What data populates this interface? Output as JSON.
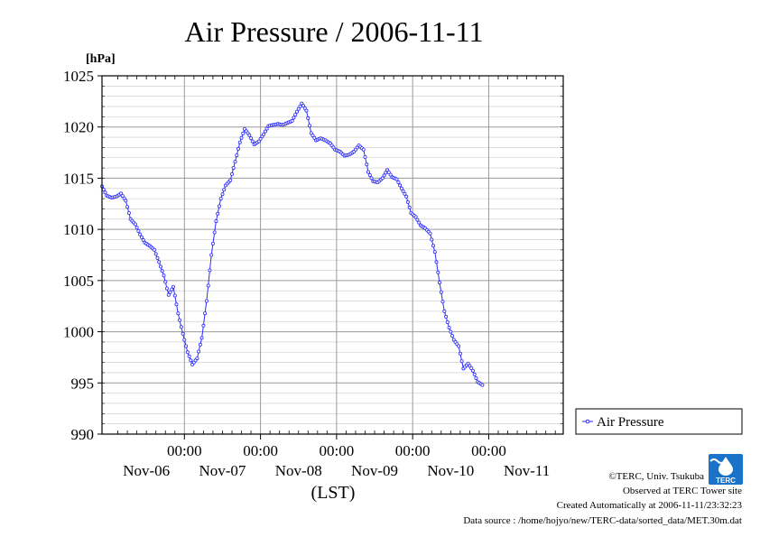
{
  "chart_data": {
    "type": "line",
    "title": "Air Pressure / 2006-11-11",
    "ylabel": "[hPa]",
    "xlabel": "(LST)",
    "ylim": [
      990,
      1025
    ],
    "yticks": [
      990,
      995,
      1000,
      1005,
      1010,
      1015,
      1020,
      1025
    ],
    "xlim": [
      "2006-11-05T22:00",
      "2006-11-11T23:30"
    ],
    "xticks": [
      {
        "time": "2006-11-07T00:00",
        "label": "00:00"
      },
      {
        "time": "2006-11-08T00:00",
        "label": "00:00"
      },
      {
        "time": "2006-11-09T00:00",
        "label": "00:00"
      },
      {
        "time": "2006-11-10T00:00",
        "label": "00:00"
      },
      {
        "time": "2006-11-11T00:00",
        "label": "00:00"
      }
    ],
    "date_labels": [
      {
        "time": "2006-11-06T12:00",
        "label": "Nov-06"
      },
      {
        "time": "2006-11-07T12:00",
        "label": "Nov-07"
      },
      {
        "time": "2006-11-08T12:00",
        "label": "Nov-08"
      },
      {
        "time": "2006-11-09T12:00",
        "label": "Nov-09"
      },
      {
        "time": "2006-11-10T12:00",
        "label": "Nov-10"
      },
      {
        "time": "2006-11-11T12:00",
        "label": "Nov-11"
      }
    ],
    "grid": true,
    "legend": "right",
    "series": [
      {
        "name": "Air Pressure",
        "color": "#2b2bff",
        "marker": "open-circle",
        "points": [
          [
            "2006-11-05T22:00",
            1014.2
          ],
          [
            "2006-11-05T23:30",
            1013.3
          ],
          [
            "2006-11-06T01:00",
            1013.1
          ],
          [
            "2006-11-06T02:30",
            1013.2
          ],
          [
            "2006-11-06T04:00",
            1013.5
          ],
          [
            "2006-11-06T05:30",
            1012.8
          ],
          [
            "2006-11-06T07:00",
            1011.0
          ],
          [
            "2006-11-06T08:30",
            1010.5
          ],
          [
            "2006-11-06T10:00",
            1009.5
          ],
          [
            "2006-11-06T11:30",
            1008.7
          ],
          [
            "2006-11-06T13:00",
            1008.4
          ],
          [
            "2006-11-06T14:30",
            1008.0
          ],
          [
            "2006-11-06T16:00",
            1006.8
          ],
          [
            "2006-11-06T17:30",
            1005.5
          ],
          [
            "2006-11-06T19:00",
            1003.6
          ],
          [
            "2006-11-06T20:30",
            1004.4
          ],
          [
            "2006-11-06T22:00",
            1001.8
          ],
          [
            "2006-11-06T23:30",
            999.8
          ],
          [
            "2006-11-07T01:00",
            998.0
          ],
          [
            "2006-11-07T02:30",
            996.8
          ],
          [
            "2006-11-07T04:00",
            997.4
          ],
          [
            "2006-11-07T05:30",
            999.4
          ],
          [
            "2006-11-07T07:00",
            1003.0
          ],
          [
            "2006-11-07T08:30",
            1007.5
          ],
          [
            "2006-11-07T10:00",
            1010.8
          ],
          [
            "2006-11-07T11:30",
            1013.0
          ],
          [
            "2006-11-07T13:00",
            1014.3
          ],
          [
            "2006-11-07T14:30",
            1014.8
          ],
          [
            "2006-11-07T16:00",
            1016.6
          ],
          [
            "2006-11-07T17:30",
            1018.5
          ],
          [
            "2006-11-07T19:00",
            1019.8
          ],
          [
            "2006-11-07T20:30",
            1019.2
          ],
          [
            "2006-11-07T22:00",
            1018.3
          ],
          [
            "2006-11-07T23:30",
            1018.6
          ],
          [
            "2006-11-08T01:00",
            1019.3
          ],
          [
            "2006-11-08T02:30",
            1020.1
          ],
          [
            "2006-11-08T04:00",
            1020.2
          ],
          [
            "2006-11-08T05:30",
            1020.3
          ],
          [
            "2006-11-08T07:00",
            1020.2
          ],
          [
            "2006-11-08T08:30",
            1020.4
          ],
          [
            "2006-11-08T10:00",
            1020.6
          ],
          [
            "2006-11-08T11:30",
            1021.5
          ],
          [
            "2006-11-08T13:00",
            1022.3
          ],
          [
            "2006-11-08T14:30",
            1021.6
          ],
          [
            "2006-11-08T16:00",
            1019.4
          ],
          [
            "2006-11-08T17:30",
            1018.7
          ],
          [
            "2006-11-08T19:00",
            1018.9
          ],
          [
            "2006-11-08T20:30",
            1018.7
          ],
          [
            "2006-11-08T22:00",
            1018.4
          ],
          [
            "2006-11-08T23:30",
            1017.8
          ],
          [
            "2006-11-09T01:00",
            1017.6
          ],
          [
            "2006-11-09T02:30",
            1017.2
          ],
          [
            "2006-11-09T04:00",
            1017.3
          ],
          [
            "2006-11-09T05:30",
            1017.6
          ],
          [
            "2006-11-09T07:00",
            1018.2
          ],
          [
            "2006-11-09T08:30",
            1017.8
          ],
          [
            "2006-11-09T10:00",
            1015.6
          ],
          [
            "2006-11-09T11:30",
            1014.7
          ],
          [
            "2006-11-09T13:00",
            1014.6
          ],
          [
            "2006-11-09T14:30",
            1015.0
          ],
          [
            "2006-11-09T16:00",
            1015.8
          ],
          [
            "2006-11-09T17:30",
            1015.1
          ],
          [
            "2006-11-09T19:00",
            1014.9
          ],
          [
            "2006-11-09T20:30",
            1014.0
          ],
          [
            "2006-11-09T22:00",
            1013.2
          ],
          [
            "2006-11-09T23:30",
            1011.6
          ],
          [
            "2006-11-10T01:00",
            1011.2
          ],
          [
            "2006-11-10T02:30",
            1010.4
          ],
          [
            "2006-11-10T04:00",
            1010.1
          ],
          [
            "2006-11-10T05:30",
            1009.6
          ],
          [
            "2006-11-10T07:00",
            1007.8
          ],
          [
            "2006-11-10T08:30",
            1004.8
          ],
          [
            "2006-11-10T10:00",
            1002.0
          ],
          [
            "2006-11-10T11:30",
            1000.4
          ],
          [
            "2006-11-10T13:00",
            999.2
          ],
          [
            "2006-11-10T14:30",
            998.6
          ],
          [
            "2006-11-10T16:00",
            996.4
          ],
          [
            "2006-11-10T17:30",
            996.9
          ],
          [
            "2006-11-10T19:00",
            996.2
          ],
          [
            "2006-11-10T20:30",
            995.1
          ],
          [
            "2006-11-10T22:00",
            994.8
          ]
        ]
      }
    ]
  },
  "footer": {
    "credit": "©TERC, Univ. Tsukuba",
    "observed": "Observed at TERC Tower site",
    "created": "Created Automatically at 2006-11-11/23:32:23",
    "source": "Data source : /home/hojyo/new/TERC-data/sorted_data/MET.30m.dat"
  },
  "logo": {
    "label": "TERC",
    "color": "#1a73c9"
  }
}
